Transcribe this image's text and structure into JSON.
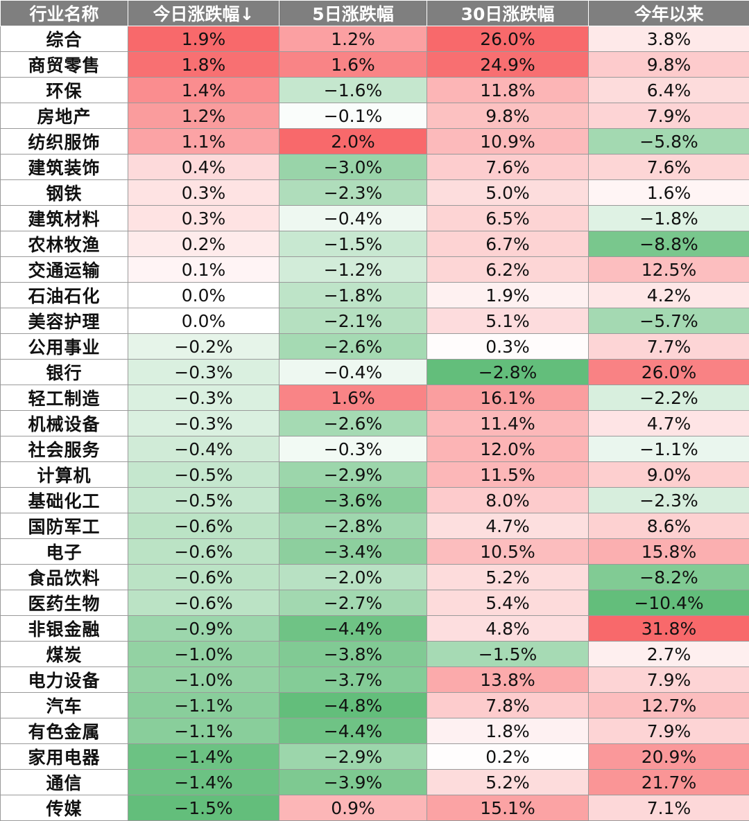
{
  "chart_data": {
    "type": "table",
    "columns": [
      "行业名称",
      "今日涨跌幅↓",
      "5日涨跌幅",
      "30日涨跌幅",
      "今年以来"
    ],
    "rows": [
      [
        "综合",
        "1.9%",
        "1.2%",
        "26.0%",
        "3.8%"
      ],
      [
        "商贸零售",
        "1.8%",
        "1.6%",
        "24.9%",
        "9.8%"
      ],
      [
        "环保",
        "1.4%",
        "−1.6%",
        "11.8%",
        "6.4%"
      ],
      [
        "房地产",
        "1.2%",
        "−0.1%",
        "9.8%",
        "7.9%"
      ],
      [
        "纺织服饰",
        "1.1%",
        "2.0%",
        "10.9%",
        "−5.8%"
      ],
      [
        "建筑装饰",
        "0.4%",
        "−3.0%",
        "7.6%",
        "7.6%"
      ],
      [
        "钢铁",
        "0.3%",
        "−2.3%",
        "5.0%",
        "1.6%"
      ],
      [
        "建筑材料",
        "0.3%",
        "−0.4%",
        "6.5%",
        "−1.8%"
      ],
      [
        "农林牧渔",
        "0.2%",
        "−1.5%",
        "6.7%",
        "−8.8%"
      ],
      [
        "交通运输",
        "0.1%",
        "−1.2%",
        "6.2%",
        "12.5%"
      ],
      [
        "石油石化",
        "0.0%",
        "−1.8%",
        "1.9%",
        "4.2%"
      ],
      [
        "美容护理",
        "0.0%",
        "−2.1%",
        "5.1%",
        "−5.7%"
      ],
      [
        "公用事业",
        "−0.2%",
        "−2.6%",
        "0.3%",
        "7.7%"
      ],
      [
        "银行",
        "−0.3%",
        "−0.4%",
        "−2.8%",
        "26.0%"
      ],
      [
        "轻工制造",
        "−0.3%",
        "1.6%",
        "16.1%",
        "−2.2%"
      ],
      [
        "机械设备",
        "−0.3%",
        "−2.6%",
        "11.4%",
        "4.7%"
      ],
      [
        "社会服务",
        "−0.4%",
        "−0.3%",
        "12.0%",
        "−1.1%"
      ],
      [
        "计算机",
        "−0.5%",
        "−2.9%",
        "11.5%",
        "9.0%"
      ],
      [
        "基础化工",
        "−0.5%",
        "−3.6%",
        "8.0%",
        "−2.3%"
      ],
      [
        "国防军工",
        "−0.6%",
        "−2.8%",
        "4.7%",
        "8.6%"
      ],
      [
        "电子",
        "−0.6%",
        "−3.4%",
        "10.5%",
        "15.8%"
      ],
      [
        "食品饮料",
        "−0.6%",
        "−2.0%",
        "5.2%",
        "−8.2%"
      ],
      [
        "医药生物",
        "−0.6%",
        "−2.7%",
        "5.4%",
        "−10.4%"
      ],
      [
        "非银金融",
        "−0.9%",
        "−4.4%",
        "4.8%",
        "31.8%"
      ],
      [
        "煤炭",
        "−1.0%",
        "−3.8%",
        "−1.5%",
        "2.7%"
      ],
      [
        "电力设备",
        "−1.0%",
        "−3.7%",
        "13.8%",
        "7.9%"
      ],
      [
        "汽车",
        "−1.1%",
        "−4.8%",
        "7.8%",
        "12.7%"
      ],
      [
        "有色金属",
        "−1.1%",
        "−4.4%",
        "1.8%",
        "7.9%"
      ],
      [
        "家用电器",
        "−1.4%",
        "−2.9%",
        "0.2%",
        "20.9%"
      ],
      [
        "通信",
        "−1.4%",
        "−3.9%",
        "5.2%",
        "21.7%"
      ],
      [
        "传媒",
        "−1.5%",
        "0.9%",
        "15.1%",
        "7.1%"
      ]
    ],
    "sort_column": "今日涨跌幅↓",
    "color_scale": {
      "positive": "#f8696b",
      "negative": "#63be7b",
      "neutral": "#ffffff",
      "positive_max": 31.8,
      "negative_min": -10.4
    },
    "header_background": "#7f7f7f",
    "header_text_color": "#ffffff"
  }
}
